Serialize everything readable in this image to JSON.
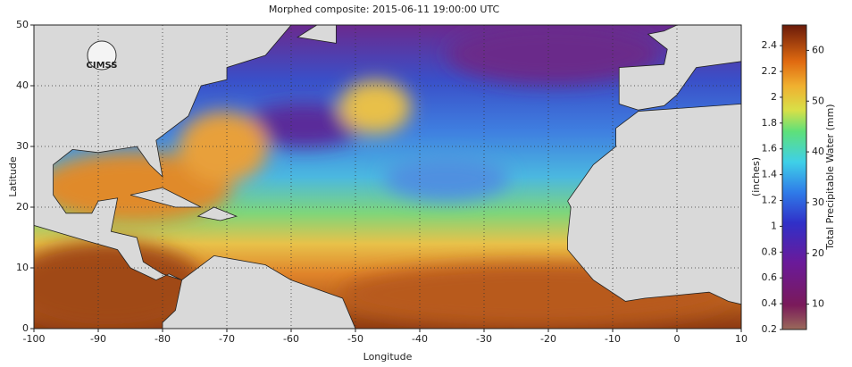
{
  "title": "Morphed composite: 2015-06-11 19:00:00 UTC",
  "logo": "CIMSS",
  "map": {
    "xlabel": "Longitude",
    "ylabel": "Latitude",
    "xlim": [
      -100,
      10
    ],
    "ylim": [
      0,
      50
    ],
    "xticks": [
      -100,
      -90,
      -80,
      -70,
      -60,
      -50,
      -40,
      -30,
      -20,
      -10,
      0,
      10
    ],
    "yticks": [
      0,
      10,
      20,
      30,
      40,
      50
    ],
    "grid": true
  },
  "colorbar": {
    "left_label": "(inches)",
    "right_label": "Total Precipitable Water (mm)",
    "inch_lim": [
      0.2,
      2.56
    ],
    "inch_ticks": [
      0.2,
      0.4,
      0.6,
      0.8,
      1,
      1.2,
      1.4,
      1.6,
      1.8,
      2,
      2.2,
      2.4
    ],
    "mm_lim": [
      5,
      65
    ],
    "mm_ticks": [
      10,
      20,
      30,
      40,
      50,
      60
    ]
  }
}
